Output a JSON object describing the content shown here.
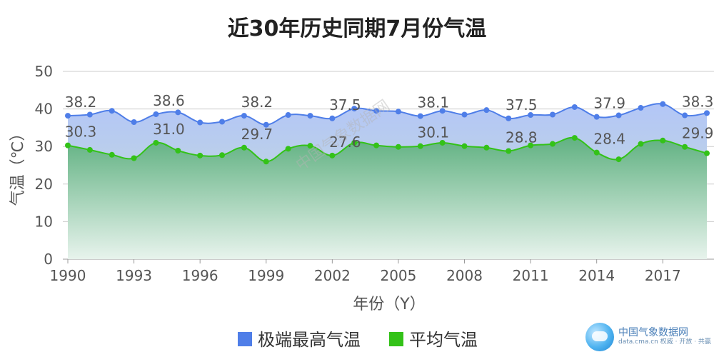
{
  "chart_data": {
    "type": "area",
    "title": "近30年历史同期7月份气温",
    "xlabel": "年份（Y）",
    "ylabel": "气温（℃）",
    "ylim": [
      0,
      50
    ],
    "yticks": [
      0,
      10,
      20,
      30,
      40,
      50
    ],
    "xticks": [
      "1990",
      "1993",
      "1996",
      "1999",
      "2002",
      "2005",
      "2008",
      "2011",
      "2014",
      "2017"
    ],
    "x": [
      1990,
      1991,
      1992,
      1993,
      1994,
      1995,
      1996,
      1997,
      1998,
      1999,
      2000,
      2001,
      2002,
      2003,
      2004,
      2005,
      2006,
      2007,
      2008,
      2009,
      2010,
      2011,
      2012,
      2013,
      2014,
      2015,
      2016,
      2017,
      2018,
      2019
    ],
    "grid": true,
    "legend_position": "bottom",
    "series": [
      {
        "name": "极端最高气温",
        "color": "#4f7ee8",
        "fill_color": "#aabff5",
        "values": [
          38.2,
          38.5,
          39.5,
          36.5,
          38.6,
          39.1,
          36.4,
          36.6,
          38.2,
          35.8,
          38.4,
          38.2,
          37.5,
          40.1,
          39.5,
          39.3,
          38.1,
          39.5,
          38.5,
          39.7,
          37.5,
          38.4,
          38.5,
          40.5,
          37.9,
          38.3,
          40.3,
          41.3,
          38.3,
          38.9
        ],
        "labels": [
          {
            "index": 0,
            "text": "38.2"
          },
          {
            "index": 4,
            "text": "38.6"
          },
          {
            "index": 8,
            "text": "38.2"
          },
          {
            "index": 12,
            "text": "37.5"
          },
          {
            "index": 16,
            "text": "38.1"
          },
          {
            "index": 20,
            "text": "37.5"
          },
          {
            "index": 24,
            "text": "37.9"
          },
          {
            "index": 28,
            "text": "38.3"
          }
        ]
      },
      {
        "name": "平均气温",
        "color": "#33c218",
        "fill_color": "#4dab72",
        "values": [
          30.3,
          29.1,
          27.8,
          26.9,
          31.0,
          28.9,
          27.6,
          27.7,
          29.7,
          26.0,
          29.4,
          30.2,
          27.6,
          31.0,
          30.3,
          29.9,
          30.1,
          31.0,
          30.1,
          29.7,
          28.8,
          30.3,
          30.7,
          32.3,
          28.4,
          26.6,
          30.7,
          31.6,
          29.9,
          28.2
        ],
        "labels": [
          {
            "index": 0,
            "text": "30.3"
          },
          {
            "index": 4,
            "text": "31.0"
          },
          {
            "index": 8,
            "text": "29.7"
          },
          {
            "index": 12,
            "text": "27.6"
          },
          {
            "index": 16,
            "text": "30.1"
          },
          {
            "index": 20,
            "text": "28.8"
          },
          {
            "index": 24,
            "text": "28.4"
          },
          {
            "index": 28,
            "text": "29.9"
          }
        ]
      }
    ]
  },
  "watermark": {
    "center_text": "中国气象数据网",
    "logo_name": "中国气象数据网",
    "logo_sub": "data.cma.cn 权威 · 开放 · 共赢",
    "logo_icon": "cloud-logo-icon"
  }
}
